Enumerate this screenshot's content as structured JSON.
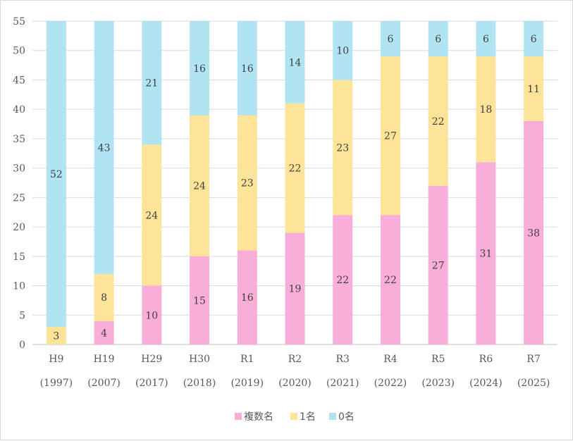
{
  "chart_data": {
    "type": "bar",
    "stacked": true,
    "categories": [
      "H9",
      "H19",
      "H29",
      "H30",
      "R1",
      "R2",
      "R3",
      "R4",
      "R5",
      "R6",
      "R7"
    ],
    "category_years": [
      "(1997)",
      "(2007)",
      "(2017)",
      "(2018)",
      "(2019)",
      "(2020)",
      "(2021)",
      "(2022)",
      "(2023)",
      "(2024)",
      "(2025)"
    ],
    "series": [
      {
        "name": "複数名",
        "color": "#f9add9",
        "values": [
          0,
          4,
          10,
          15,
          16,
          19,
          22,
          22,
          27,
          31,
          38
        ]
      },
      {
        "name": "1名",
        "color": "#fde499",
        "values": [
          3,
          8,
          24,
          24,
          23,
          22,
          23,
          27,
          22,
          18,
          11
        ]
      },
      {
        "name": "0名",
        "color": "#b1e4f3",
        "values": [
          52,
          43,
          21,
          16,
          16,
          14,
          10,
          6,
          6,
          6,
          6
        ]
      }
    ],
    "ylim": [
      0,
      55
    ],
    "yticks": [
      "0",
      "5",
      "10",
      "15",
      "20",
      "25",
      "30",
      "35",
      "40",
      "45",
      "50",
      "55"
    ],
    "title": "",
    "xlabel": "",
    "ylabel": "",
    "grid": true,
    "legend_position": "bottom"
  }
}
